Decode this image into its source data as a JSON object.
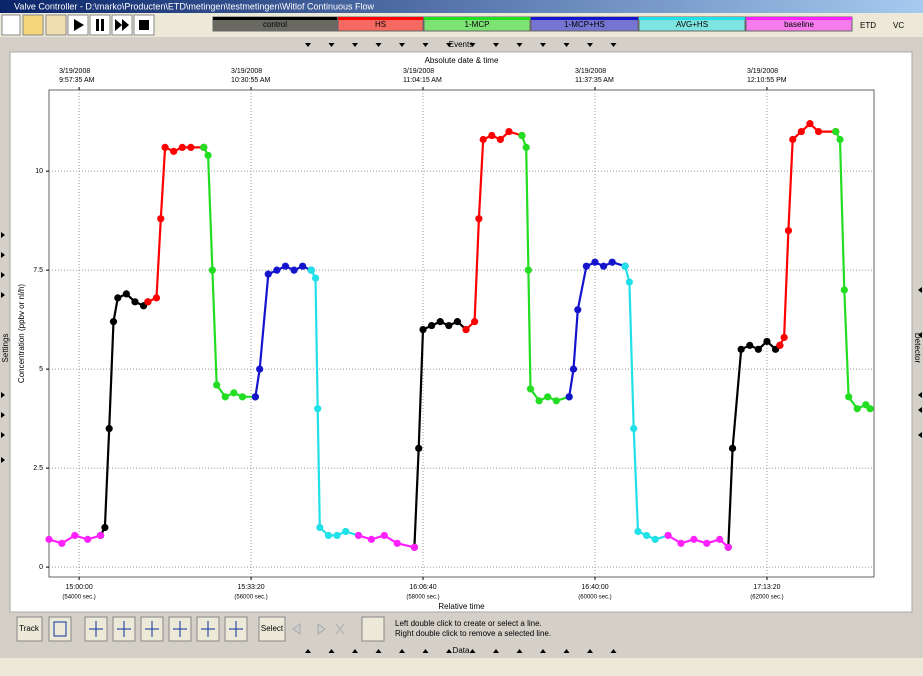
{
  "window": {
    "title": "Valve Controller - D:\\marko\\Producten\\ETD\\metingen\\testmetingen\\Witlof Continuous Flow"
  },
  "toolbar": {
    "indicators": [
      "ETD",
      "VC"
    ]
  },
  "panels": {
    "events": "Events",
    "data": "Data",
    "left": "Settings",
    "right": "Detector"
  },
  "bottom_toolbar": {
    "track": "Track",
    "select": "Select",
    "hints": [
      "Left double click to create or select a line.",
      "Right double click to remove a selected line."
    ]
  },
  "chart_data": {
    "type": "scatter",
    "x_axis_label": "Relative time",
    "x2_axis_label": "Absolute date & time",
    "y_axis_label": "Concentration  (ppbv  or  nl/h)",
    "xlim": [
      53650,
      63245
    ],
    "ylim": [
      -0.25,
      12.05
    ],
    "xticks": [
      {
        "value": 54000,
        "label": "15:00:00",
        "sublabel": "(54000 sec.)"
      },
      {
        "value": 56000,
        "label": "15:33:20",
        "sublabel": "(56000 sec.)"
      },
      {
        "value": 58000,
        "label": "16:06:40",
        "sublabel": "(58000 sec.)"
      },
      {
        "value": 60000,
        "label": "16:40:00",
        "sublabel": "(60000 sec.)"
      },
      {
        "value": 62000,
        "label": "17:13:20",
        "sublabel": "(62000 sec.)"
      }
    ],
    "x2ticks": [
      {
        "value": 54000,
        "date": "3/19/2008",
        "label": "9:57:35 AM"
      },
      {
        "value": 56000,
        "date": "3/19/2008",
        "label": "10:30:55 AM"
      },
      {
        "value": 58000,
        "date": "3/19/2008",
        "label": "11:04:15 AM"
      },
      {
        "value": 60000,
        "date": "3/19/2008",
        "label": "11:37:35 AM"
      },
      {
        "value": 62000,
        "date": "3/19/2008",
        "label": "12:10:55 PM"
      }
    ],
    "yticks": [
      0,
      2.5,
      5,
      7.5,
      10
    ],
    "grid": true,
    "series": [
      {
        "name": "control",
        "color": "#000000",
        "x": [
          54250,
          54300,
          54350,
          54400,
          54450,
          54550,
          54650,
          54750,
          54800,
          null,
          57900,
          57950,
          58000,
          58100,
          58200,
          58300,
          58400,
          58500,
          null,
          61550,
          61600,
          61700,
          61800,
          61900,
          62000,
          62100,
          62150
        ],
        "values": [
          0.8,
          1.0,
          3.5,
          6.2,
          6.8,
          6.9,
          6.7,
          6.6,
          6.7,
          null,
          0.5,
          3.0,
          6.0,
          6.1,
          6.2,
          6.1,
          6.2,
          6.0,
          null,
          0.5,
          3.0,
          5.5,
          5.6,
          5.5,
          5.7,
          5.5,
          5.6
        ]
      },
      {
        "name": "HS",
        "color": "#ff0000",
        "x": [
          54800,
          54900,
          54950,
          55000,
          55100,
          55200,
          55300,
          55450,
          null,
          58500,
          58600,
          58650,
          58700,
          58800,
          58900,
          59000,
          59150,
          null,
          62150,
          62200,
          62250,
          62300,
          62400,
          62500,
          62600,
          62800
        ],
        "values": [
          6.7,
          6.8,
          8.8,
          10.6,
          10.5,
          10.6,
          10.6,
          10.6,
          null,
          6.0,
          6.2,
          8.8,
          10.8,
          10.9,
          10.8,
          11.0,
          10.9,
          null,
          5.6,
          5.8,
          8.5,
          10.8,
          11.0,
          11.2,
          11.0,
          11.0
        ]
      },
      {
        "name": "1-MCP",
        "color": "#22dd22",
        "x": [
          55450,
          55500,
          55550,
          55600,
          55700,
          55800,
          55900,
          56050,
          null,
          59150,
          59200,
          59225,
          59250,
          59350,
          59450,
          59550,
          59700,
          null,
          62800,
          62850,
          62900,
          62950,
          63050,
          63150,
          63200
        ],
        "values": [
          10.6,
          10.4,
          7.5,
          4.6,
          4.3,
          4.4,
          4.3,
          4.3,
          null,
          10.9,
          10.6,
          7.5,
          4.5,
          4.2,
          4.3,
          4.2,
          4.3,
          null,
          11.0,
          10.8,
          7.0,
          4.3,
          4.0,
          4.1,
          4.0
        ]
      },
      {
        "name": "1-MCP+HS",
        "color": "#1414cc",
        "x": [
          56050,
          56100,
          56200,
          56300,
          56400,
          56500,
          56600,
          56700,
          null,
          59700,
          59750,
          59800,
          59900,
          60000,
          60100,
          60200,
          60350
        ],
        "values": [
          4.3,
          5.0,
          7.4,
          7.5,
          7.6,
          7.5,
          7.6,
          7.5,
          null,
          4.3,
          5.0,
          6.5,
          7.6,
          7.7,
          7.6,
          7.7,
          7.6
        ]
      },
      {
        "name": "AVG+HS",
        "color": "#22e0e8",
        "x": [
          56700,
          56750,
          56775,
          56800,
          56900,
          57000,
          57100,
          57250,
          null,
          60350,
          60400,
          60450,
          60500,
          60600,
          60700,
          60850
        ],
        "values": [
          7.5,
          7.3,
          4.0,
          1.0,
          0.8,
          0.8,
          0.9,
          0.8,
          null,
          7.6,
          7.2,
          3.5,
          0.9,
          0.8,
          0.7,
          0.8
        ]
      },
      {
        "name": "baseline",
        "color": "#ff22ff",
        "x": [
          53650,
          53800,
          53950,
          54100,
          54250,
          null,
          57250,
          57400,
          57550,
          57700,
          57900,
          null,
          60850,
          61000,
          61150,
          61300,
          61450,
          61550
        ],
        "values": [
          0.7,
          0.6,
          0.8,
          0.7,
          0.8,
          null,
          0.8,
          0.7,
          0.8,
          0.6,
          0.5,
          null,
          0.8,
          0.6,
          0.7,
          0.6,
          0.7,
          0.5
        ]
      }
    ]
  }
}
